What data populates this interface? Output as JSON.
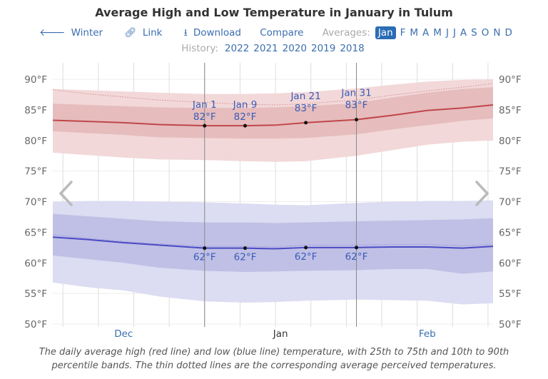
{
  "title": "Average High and Low Temperature in January in Tulum",
  "nav": {
    "back": {
      "icon": "arrow-left-icon",
      "label": "Winter"
    },
    "link": {
      "icon": "link-icon",
      "label": "Link"
    },
    "download": {
      "icon": "download-icon",
      "label": "Download"
    },
    "compare": "Compare",
    "averages_label": "Averages:",
    "months": [
      "Jan",
      "F",
      "M",
      "A",
      "M",
      "J",
      "J",
      "A",
      "S",
      "O",
      "N",
      "D"
    ],
    "selected_month": "Jan"
  },
  "history": {
    "label": "History:",
    "years": [
      "2022",
      "2021",
      "2020",
      "2019",
      "2018"
    ]
  },
  "caption": "The daily average high (red line) and low (blue line) temperature, with 25th to 75th and 10th to 90th percentile bands. The thin dotted lines are the corresponding average perceived temperatures.",
  "colors": {
    "high": "#c0474a",
    "high_band_inner": "#e6bcbd",
    "high_band_outer": "#f2d8d9",
    "low": "#4a4ac4",
    "low_band_inner": "#c0c0e6",
    "low_band_outer": "#dcdcf2",
    "link": "#3a6fb0",
    "selected": "#2a6db5"
  },
  "chart_data": {
    "type": "line",
    "title": "Average High and Low Temperature in January in Tulum",
    "yunit": "°F",
    "ylim": [
      50,
      90
    ],
    "yticks": [
      "90°F",
      "85°F",
      "80°F",
      "75°F",
      "70°F",
      "65°F",
      "60°F",
      "55°F",
      "50°F"
    ],
    "xrange": [
      "Dec 2",
      "Feb 27"
    ],
    "month_labels": [
      {
        "label": "Dec",
        "date": "Dec 16"
      },
      {
        "label": "Jan",
        "date": "Jan 16"
      },
      {
        "label": "Feb",
        "date": "Feb 14"
      }
    ],
    "highlight_lines": [
      "Jan 1",
      "Jan 31"
    ],
    "grid": true,
    "dates": [
      "Dec 2",
      "Dec 9",
      "Dec 16",
      "Dec 23",
      "Jan 1",
      "Jan 9",
      "Jan 15",
      "Jan 21",
      "Jan 31",
      "Feb 7",
      "Feb 14",
      "Feb 21",
      "Feb 27"
    ],
    "series": [
      {
        "key": "high",
        "mean": [
          83.3,
          83.1,
          82.9,
          82.6,
          82.4,
          82.4,
          82.5,
          82.9,
          83.4,
          84.1,
          84.9,
          85.3,
          85.8
        ],
        "p25": [
          81.5,
          81.2,
          80.9,
          80.5,
          80.4,
          80.3,
          80.3,
          80.4,
          81.0,
          81.8,
          82.5,
          83.2,
          83.6
        ],
        "p75": [
          86.0,
          85.8,
          85.6,
          85.4,
          85.3,
          85.3,
          85.4,
          85.6,
          86.1,
          87.0,
          87.8,
          88.4,
          88.7
        ],
        "p10": [
          78.0,
          77.6,
          77.2,
          76.9,
          76.8,
          76.6,
          76.5,
          76.6,
          77.5,
          78.4,
          79.3,
          79.8,
          80.0
        ],
        "p90": [
          88.4,
          88.2,
          88.0,
          87.8,
          87.6,
          87.6,
          87.7,
          87.9,
          88.5,
          89.1,
          89.6,
          89.9,
          90.0
        ],
        "perceived": [
          88.3,
          87.6,
          87.1,
          86.6,
          86.2,
          85.9,
          85.8,
          86.0,
          86.6,
          87.4,
          88.1,
          88.7,
          89.3
        ]
      },
      {
        "key": "low",
        "mean": [
          64.2,
          63.8,
          63.3,
          62.9,
          62.4,
          62.4,
          62.3,
          62.5,
          62.5,
          62.6,
          62.6,
          62.4,
          62.7
        ],
        "p25": [
          61.2,
          60.6,
          60.0,
          59.2,
          58.7,
          58.5,
          58.6,
          58.7,
          58.8,
          59.0,
          59.0,
          58.2,
          58.6
        ],
        "p75": [
          68.0,
          67.6,
          67.2,
          66.8,
          66.6,
          66.6,
          66.5,
          66.6,
          66.8,
          66.9,
          67.0,
          67.1,
          67.3
        ],
        "p10": [
          56.8,
          56.0,
          55.5,
          54.5,
          53.7,
          53.5,
          53.6,
          53.8,
          54.0,
          53.9,
          53.8,
          53.2,
          53.4
        ],
        "p90": [
          70.0,
          70.1,
          70.1,
          70.0,
          69.9,
          69.7,
          69.5,
          69.4,
          69.8,
          70.0,
          70.1,
          70.1,
          70.2
        ],
        "perceived": [
          64.6,
          64.0,
          63.5,
          63.1,
          62.7,
          62.7,
          62.6,
          62.9,
          62.9,
          63.0,
          63.0,
          62.8,
          63.0
        ]
      }
    ],
    "annotations": [
      {
        "date": "Jan 1",
        "high": "82°F",
        "low": "62°F"
      },
      {
        "date": "Jan 9",
        "high": "82°F",
        "low": "62°F"
      },
      {
        "date": "Jan 21",
        "high": "83°F",
        "low": "62°F"
      },
      {
        "date": "Jan 31",
        "high": "83°F",
        "low": "62°F"
      }
    ]
  }
}
